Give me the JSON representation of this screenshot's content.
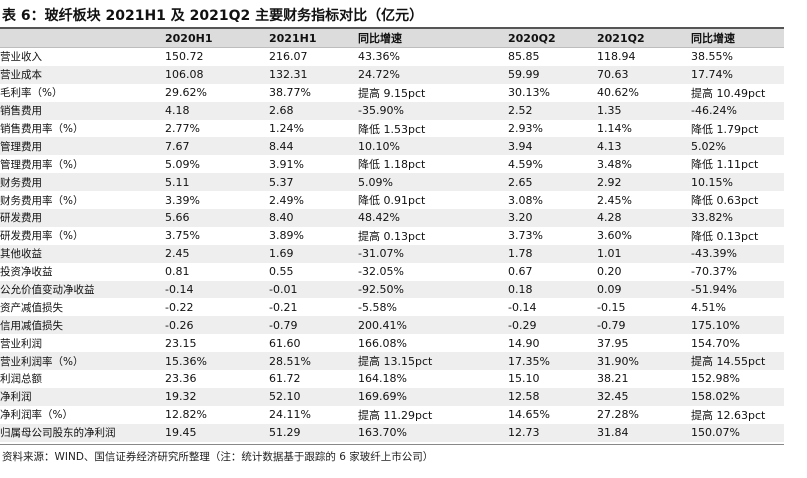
{
  "title": "表 6：玻纤板块 2021H1 及 2021Q2 主要财务指标对比（亿元）",
  "headers": [
    "",
    "2020H1",
    "2021H1",
    "同比增速",
    "2020Q2",
    "2021Q2",
    "同比增速"
  ],
  "rows": [
    [
      "营业收入",
      "150.72",
      "216.07",
      "43.36%",
      "85.85",
      "118.94",
      "38.55%"
    ],
    [
      "营业成本",
      "106.08",
      "132.31",
      "24.72%",
      "59.99",
      "70.63",
      "17.74%"
    ],
    [
      "毛利率（%）",
      "29.62%",
      "38.77%",
      "提高 9.15pct",
      "30.13%",
      "40.62%",
      "提高 10.49pct"
    ],
    [
      "销售费用",
      "4.18",
      "2.68",
      "-35.90%",
      "2.52",
      "1.35",
      "-46.24%"
    ],
    [
      "销售费用率（%）",
      "2.77%",
      "1.24%",
      "降低 1.53pct",
      "2.93%",
      "1.14%",
      "降低 1.79pct"
    ],
    [
      "管理费用",
      "7.67",
      "8.44",
      "10.10%",
      "3.94",
      "4.13",
      "5.02%"
    ],
    [
      "管理费用率（%）",
      "5.09%",
      "3.91%",
      "降低 1.18pct",
      "4.59%",
      "3.48%",
      "降低 1.11pct"
    ],
    [
      "财务费用",
      "5.11",
      "5.37",
      "5.09%",
      "2.65",
      "2.92",
      "10.15%"
    ],
    [
      "财务费用率（%）",
      "3.39%",
      "2.49%",
      "降低 0.91pct",
      "3.08%",
      "2.45%",
      "降低 0.63pct"
    ],
    [
      "研发费用",
      "5.66",
      "8.40",
      "48.42%",
      "3.20",
      "4.28",
      "33.82%"
    ],
    [
      "研发费用率（%）",
      "3.75%",
      "3.89%",
      "提高 0.13pct",
      "3.73%",
      "3.60%",
      "降低 0.13pct"
    ],
    [
      "其他收益",
      "2.45",
      "1.69",
      "-31.07%",
      "1.78",
      "1.01",
      "-43.39%"
    ],
    [
      "投资净收益",
      "0.81",
      "0.55",
      "-32.05%",
      "0.67",
      "0.20",
      "-70.37%"
    ],
    [
      "公允价值变动净收益",
      "-0.14",
      "-0.01",
      "-92.50%",
      "0.18",
      "0.09",
      "-51.94%"
    ],
    [
      "资产减值损失",
      "-0.22",
      "-0.21",
      "-5.58%",
      "-0.14",
      "-0.15",
      "4.51%"
    ],
    [
      "信用减值损失",
      "-0.26",
      "-0.79",
      "200.41%",
      "-0.29",
      "-0.79",
      "175.10%"
    ],
    [
      "营业利润",
      "23.15",
      "61.60",
      "166.08%",
      "14.90",
      "37.95",
      "154.70%"
    ],
    [
      "营业利润率（%）",
      "15.36%",
      "28.51%",
      "提高 13.15pct",
      "17.35%",
      "31.90%",
      "提高 14.55pct"
    ],
    [
      "利润总额",
      "23.36",
      "61.72",
      "164.18%",
      "15.10",
      "38.21",
      "152.98%"
    ],
    [
      "净利润",
      "19.32",
      "52.10",
      "169.69%",
      "12.58",
      "32.45",
      "158.02%"
    ],
    [
      "净利润率（%）",
      "12.82%",
      "24.11%",
      "提高 11.29pct",
      "14.65%",
      "27.28%",
      "提高 12.63pct"
    ],
    [
      "归属母公司股东的净利润",
      "19.45",
      "51.29",
      "163.70%",
      "12.73",
      "31.84",
      "150.07%"
    ]
  ],
  "source": "资料来源：WIND、国信证券经济研究所整理（注：统计数据基于跟踪的 6 家玻纤上市公司）"
}
